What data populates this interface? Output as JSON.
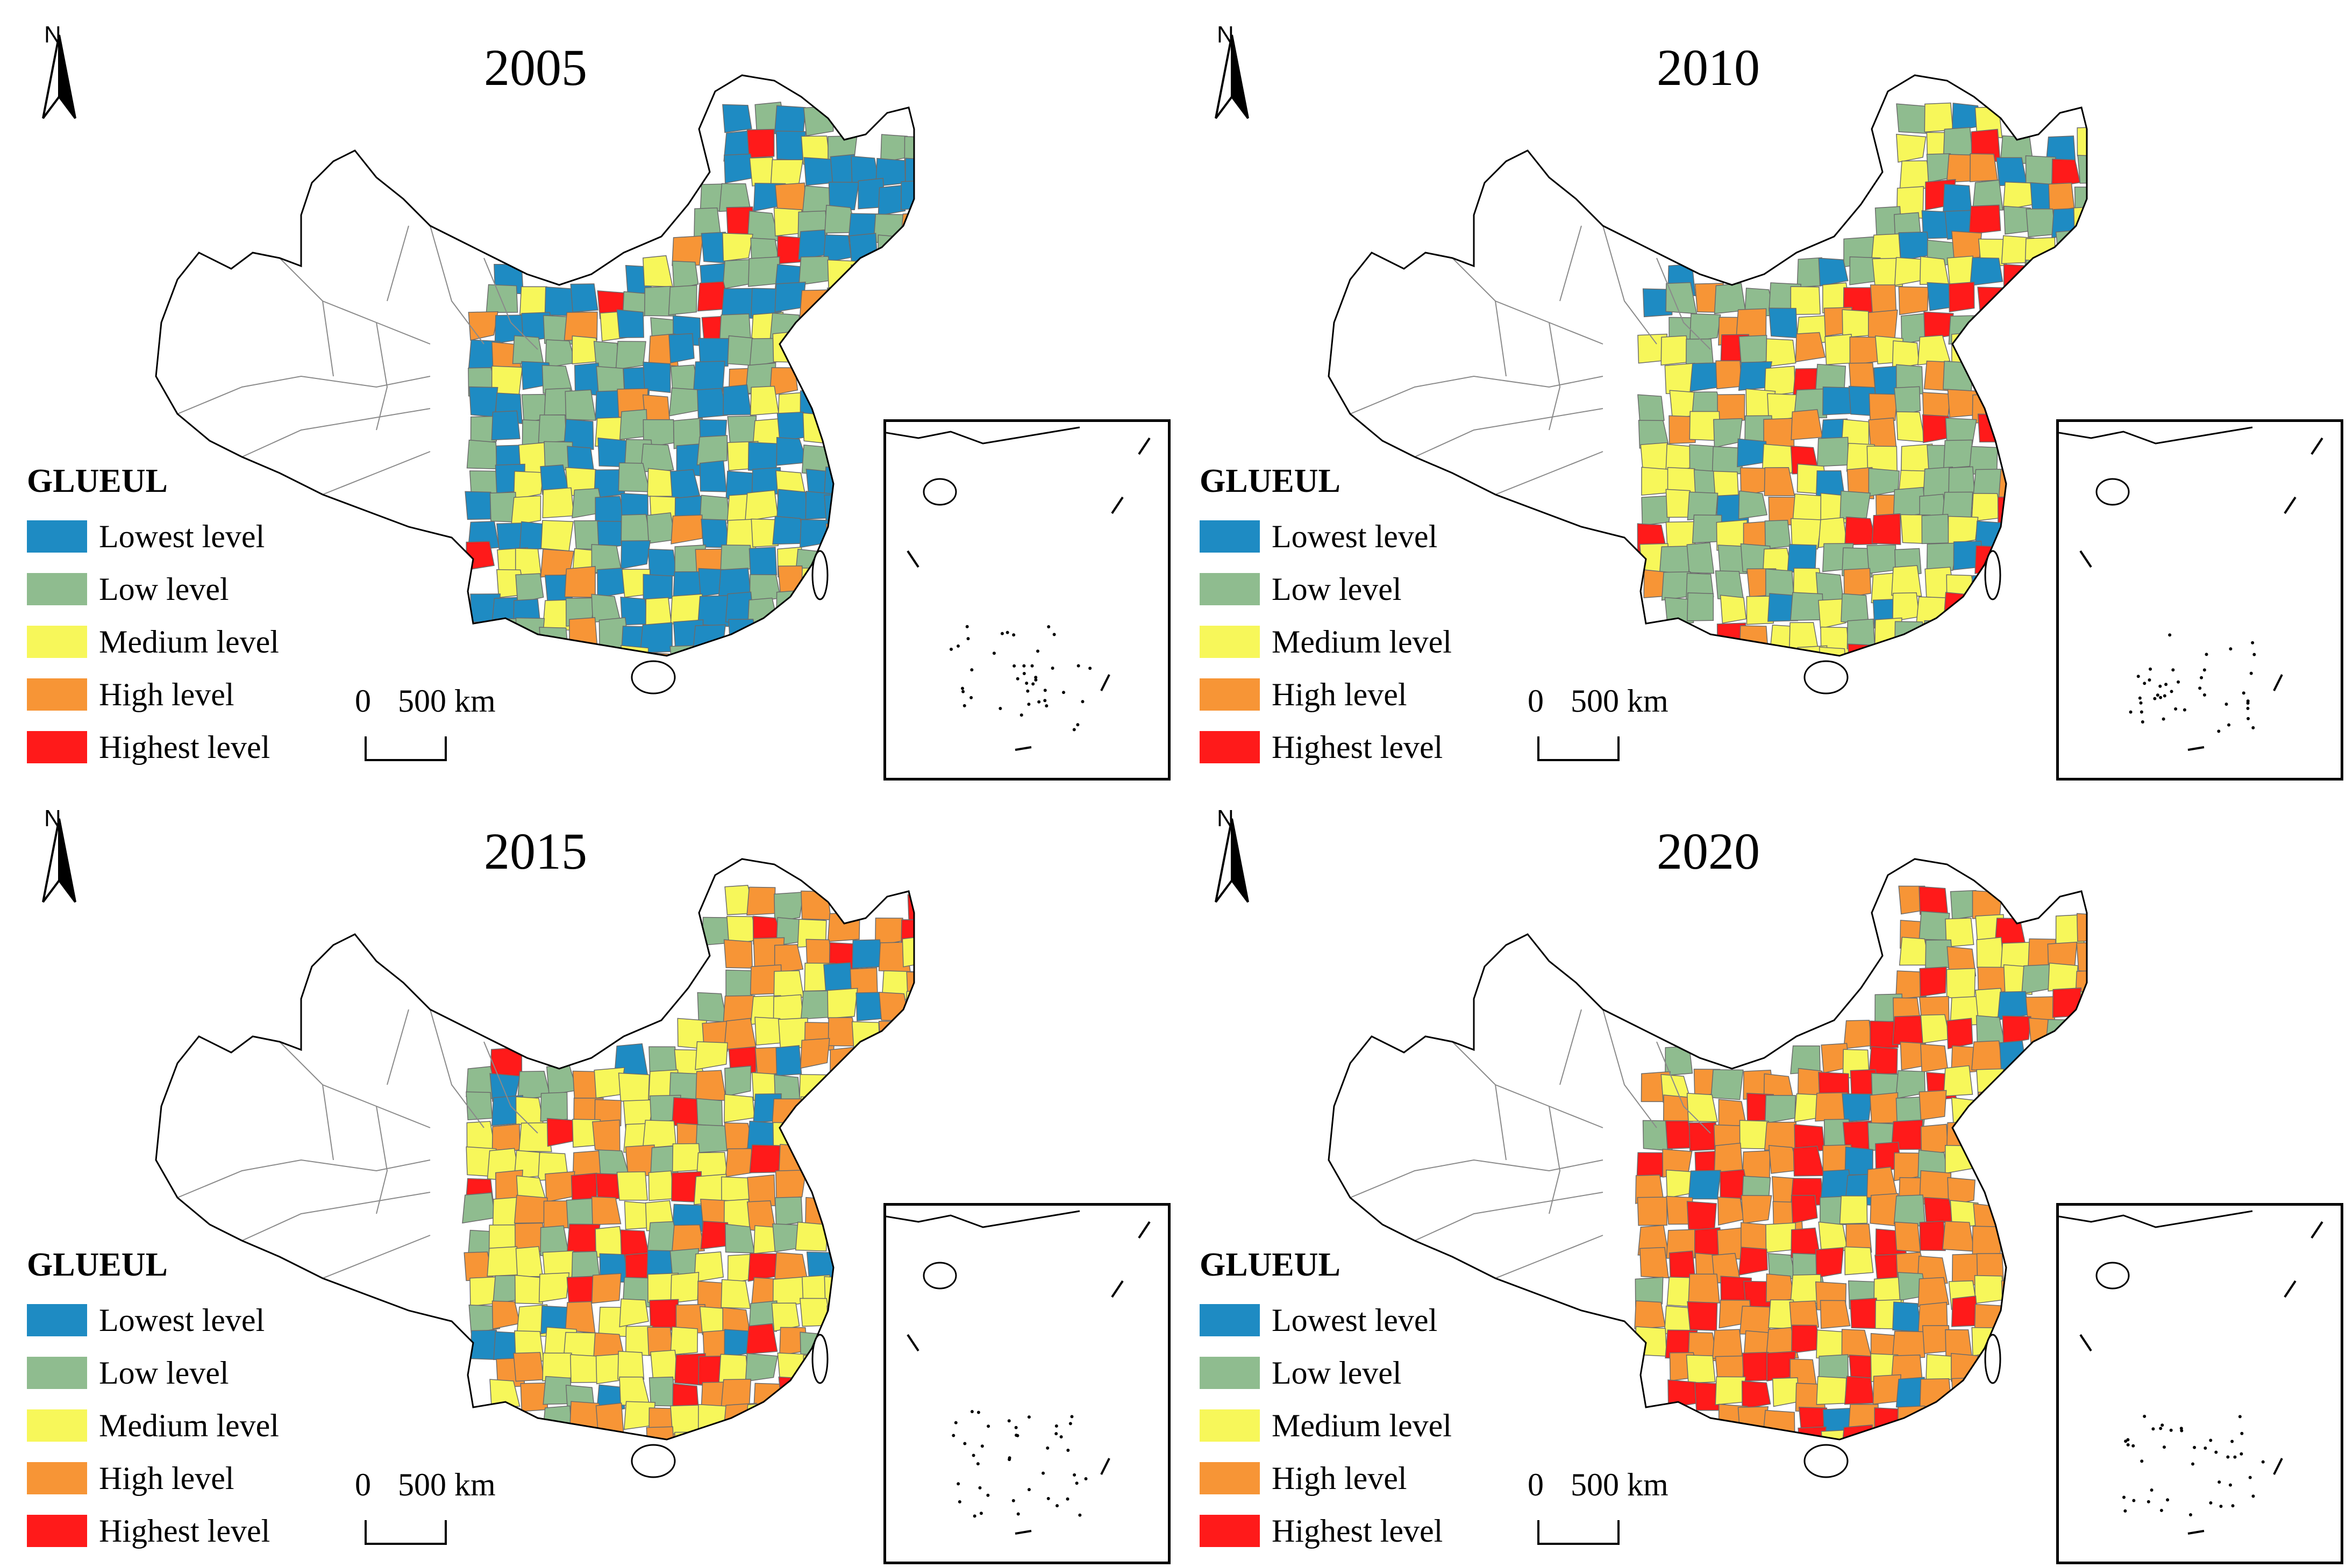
{
  "legend": {
    "title": "GLUEUL",
    "levels": [
      {
        "label": "Lowest level",
        "color": "#1E8BC3"
      },
      {
        "label": "Low level",
        "color": "#8FBC8F"
      },
      {
        "label": "Medium level",
        "color": "#F7F75A"
      },
      {
        "label": "High level",
        "color": "#F79536"
      },
      {
        "label": "Highest level",
        "color": "#FF1A1A"
      }
    ]
  },
  "scale": {
    "zero": "0",
    "distance": "500 km"
  },
  "north_label": "N",
  "panels": [
    {
      "year": "2005",
      "mix": [
        0.42,
        0.3,
        0.18,
        0.07,
        0.03
      ]
    },
    {
      "year": "2010",
      "mix": [
        0.12,
        0.3,
        0.33,
        0.15,
        0.1
      ]
    },
    {
      "year": "2015",
      "mix": [
        0.06,
        0.16,
        0.4,
        0.24,
        0.14
      ]
    },
    {
      "year": "2020",
      "mix": [
        0.03,
        0.08,
        0.22,
        0.42,
        0.25
      ]
    }
  ]
}
